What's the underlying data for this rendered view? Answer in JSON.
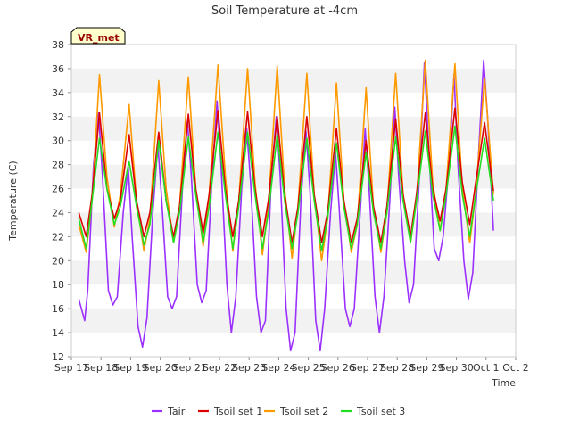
{
  "chart_data": {
    "type": "line",
    "title": "Soil Temperature at -4cm",
    "xlabel": "Time",
    "ylabel": "Temperature (C)",
    "tag": "VR_met",
    "ylim": [
      12,
      38
    ],
    "yticks": [
      12,
      14,
      16,
      18,
      20,
      22,
      24,
      26,
      28,
      30,
      32,
      34,
      36,
      38
    ],
    "xlim": [
      0,
      15
    ],
    "xtick_labels": [
      "Sep 17",
      "Sep 18",
      "Sep 19",
      "Sep 20",
      "Sep 21",
      "Sep 22",
      "Sep 23",
      "Sep 24",
      "Sep 25",
      "Sep 26",
      "Sep 27",
      "Sep 28",
      "Sep 29",
      "Sep 30",
      "Oct 1",
      "Oct 2"
    ],
    "grid": "horizontal bands",
    "legend_position": "bottom",
    "series": [
      {
        "name": "Tair",
        "color": "#9b30ff",
        "x": [
          0.25,
          0.45,
          0.55,
          0.75,
          0.92,
          1.05,
          1.25,
          1.4,
          1.55,
          1.75,
          1.92,
          2.05,
          2.25,
          2.4,
          2.55,
          2.75,
          2.92,
          3.05,
          3.25,
          3.4,
          3.55,
          3.75,
          3.92,
          4.05,
          4.25,
          4.4,
          4.55,
          4.75,
          4.92,
          5.05,
          5.25,
          5.4,
          5.55,
          5.75,
          5.92,
          6.05,
          6.25,
          6.4,
          6.55,
          6.75,
          6.92,
          7.05,
          7.25,
          7.4,
          7.55,
          7.75,
          7.92,
          8.05,
          8.25,
          8.4,
          8.55,
          8.75,
          8.92,
          9.05,
          9.25,
          9.4,
          9.55,
          9.75,
          9.92,
          10.05,
          10.25,
          10.4,
          10.55,
          10.75,
          10.92,
          11.05,
          11.25,
          11.4,
          11.55,
          11.75,
          11.92,
          12.05,
          12.25,
          12.4,
          12.55,
          12.75,
          12.92,
          13.05,
          13.25,
          13.4,
          13.55,
          13.75,
          13.92,
          14.05,
          14.25
        ],
        "y": [
          16.8,
          15.0,
          17.5,
          28.0,
          32.3,
          27.0,
          17.5,
          16.3,
          17.0,
          24.0,
          27.8,
          22.0,
          14.5,
          12.8,
          15.2,
          24.0,
          29.7,
          25.0,
          17.0,
          16.0,
          17.0,
          26.0,
          31.6,
          27.0,
          18.0,
          16.5,
          17.5,
          27.0,
          33.3,
          28.0,
          18.0,
          14.0,
          17.0,
          26.0,
          31.0,
          26.5,
          17.0,
          14.0,
          15.0,
          27.0,
          32.0,
          27.0,
          16.0,
          12.5,
          14.0,
          25.0,
          30.8,
          26.0,
          15.0,
          12.5,
          16.0,
          24.0,
          29.0,
          24.0,
          16.0,
          14.5,
          16.0,
          24.0,
          31.0,
          26.0,
          17.0,
          14.0,
          17.0,
          25.0,
          32.8,
          27.0,
          20.0,
          16.5,
          18.0,
          27.0,
          36.5,
          30.0,
          21.0,
          20.0,
          22.0,
          28.0,
          35.5,
          28.0,
          20.0,
          16.8,
          19.0,
          29.0,
          36.7,
          32.0,
          22.5
        ]
      },
      {
        "name": "Tsoil set 1",
        "color": "#dd0000",
        "x": [
          0.25,
          0.5,
          0.7,
          0.95,
          1.2,
          1.45,
          1.65,
          1.95,
          2.2,
          2.45,
          2.65,
          2.95,
          3.2,
          3.45,
          3.65,
          3.95,
          4.2,
          4.45,
          4.65,
          4.95,
          5.2,
          5.45,
          5.65,
          5.95,
          6.2,
          6.45,
          6.65,
          6.95,
          7.2,
          7.45,
          7.65,
          7.95,
          8.2,
          8.45,
          8.65,
          8.95,
          9.2,
          9.45,
          9.65,
          9.95,
          10.2,
          10.45,
          10.65,
          10.95,
          11.2,
          11.45,
          11.65,
          11.95,
          12.2,
          12.45,
          12.65,
          12.95,
          13.2,
          13.45,
          13.65,
          13.95,
          14.25
        ],
        "y": [
          24.0,
          22.0,
          25.5,
          32.3,
          26.0,
          23.5,
          25.0,
          30.5,
          25.0,
          22.0,
          24.0,
          30.7,
          25.0,
          22.0,
          24.5,
          32.2,
          26.0,
          22.3,
          25.5,
          32.5,
          26.0,
          22.0,
          25.0,
          32.4,
          26.0,
          22.0,
          25.0,
          32.0,
          25.5,
          21.5,
          24.5,
          32.0,
          25.5,
          21.5,
          24.0,
          31.0,
          25.0,
          21.5,
          23.5,
          30.0,
          24.5,
          21.5,
          24.5,
          31.8,
          25.5,
          22.0,
          25.5,
          32.3,
          26.0,
          23.3,
          26.0,
          32.7,
          26.5,
          23.0,
          26.5,
          31.5,
          25.8
        ]
      },
      {
        "name": "Tsoil set 2",
        "color": "#ff9900",
        "x": [
          0.25,
          0.5,
          0.7,
          0.95,
          1.2,
          1.45,
          1.65,
          1.95,
          2.2,
          2.45,
          2.65,
          2.95,
          3.2,
          3.45,
          3.65,
          3.95,
          4.2,
          4.45,
          4.65,
          4.95,
          5.2,
          5.45,
          5.65,
          5.95,
          6.2,
          6.45,
          6.65,
          6.95,
          7.2,
          7.45,
          7.65,
          7.95,
          8.2,
          8.45,
          8.65,
          8.95,
          9.2,
          9.45,
          9.65,
          9.95,
          10.2,
          10.45,
          10.65,
          10.95,
          11.2,
          11.45,
          11.65,
          11.95,
          12.2,
          12.45,
          12.65,
          12.95,
          13.2,
          13.45,
          13.65,
          13.95,
          14.25
        ],
        "y": [
          23.0,
          20.7,
          25.0,
          35.5,
          27.0,
          22.8,
          25.5,
          33.0,
          25.0,
          20.8,
          23.5,
          35.0,
          26.0,
          21.5,
          24.5,
          35.3,
          26.0,
          21.2,
          25.5,
          36.3,
          27.0,
          20.8,
          25.0,
          36.0,
          26.5,
          20.5,
          24.5,
          36.2,
          26.0,
          20.2,
          24.5,
          35.6,
          25.5,
          20.0,
          23.5,
          34.8,
          25.0,
          20.7,
          23.0,
          34.4,
          24.5,
          20.7,
          24.0,
          35.6,
          25.5,
          21.5,
          25.0,
          36.7,
          26.5,
          22.5,
          26.0,
          36.4,
          26.0,
          21.5,
          25.5,
          35.2,
          25.5
        ]
      },
      {
        "name": "Tsoil set 3",
        "color": "#22dd22",
        "x": [
          0.25,
          0.5,
          0.7,
          0.95,
          1.2,
          1.45,
          1.65,
          1.95,
          2.2,
          2.45,
          2.65,
          2.95,
          3.2,
          3.45,
          3.65,
          3.95,
          4.2,
          4.45,
          4.65,
          4.95,
          5.2,
          5.45,
          5.65,
          5.95,
          6.2,
          6.45,
          6.65,
          6.95,
          7.2,
          7.45,
          7.65,
          7.95,
          8.2,
          8.45,
          8.65,
          8.95,
          9.2,
          9.45,
          9.65,
          9.95,
          10.2,
          10.45,
          10.65,
          10.95,
          11.2,
          11.45,
          11.65,
          11.95,
          12.2,
          12.45,
          12.65,
          12.95,
          13.2,
          13.45,
          13.65,
          13.95,
          14.25
        ],
        "y": [
          23.5,
          21.0,
          25.0,
          30.2,
          26.0,
          23.0,
          24.5,
          28.3,
          24.5,
          21.3,
          23.0,
          30.0,
          25.0,
          21.5,
          24.0,
          30.3,
          25.5,
          21.5,
          24.5,
          30.7,
          25.5,
          21.0,
          24.5,
          30.7,
          25.5,
          21.0,
          24.0,
          30.5,
          25.0,
          21.0,
          24.0,
          30.2,
          25.0,
          20.8,
          23.5,
          29.8,
          24.5,
          21.0,
          23.0,
          29.0,
          24.0,
          21.0,
          24.0,
          30.3,
          25.0,
          21.5,
          25.0,
          30.8,
          25.5,
          22.5,
          25.5,
          31.2,
          25.5,
          22.0,
          25.5,
          30.2,
          25.0
        ]
      }
    ]
  }
}
